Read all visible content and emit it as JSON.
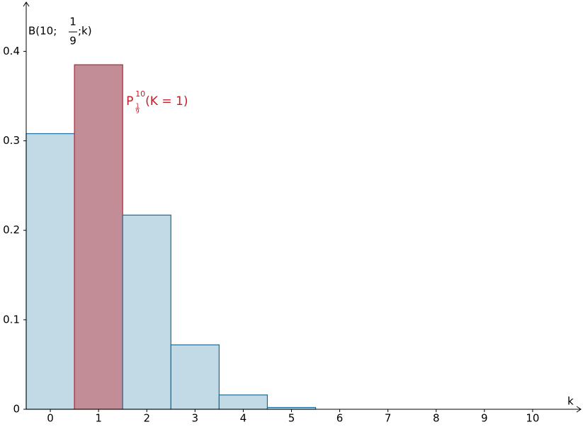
{
  "chart_data": {
    "type": "bar",
    "ylabel": {
      "prefix": "B(10;",
      "num": "1",
      "den": "9",
      "suffix": ";k)"
    },
    "xlabel": "k",
    "annotation": {
      "base": "P",
      "sup": "10",
      "sub_num": "1",
      "sub_den": "9",
      "text": "(K = 1)",
      "color": "#c0202a"
    },
    "categories": [
      "0",
      "1",
      "2",
      "3",
      "4",
      "5",
      "6",
      "7",
      "8",
      "9",
      "10"
    ],
    "values": [
      0.308,
      0.385,
      0.217,
      0.072,
      0.016,
      0.002,
      0,
      0,
      0,
      0,
      0
    ],
    "colors": [
      "#c1dae6",
      "#c28d96",
      "#c1dae6",
      "#c1dae6",
      "#c1dae6",
      "#c1dae6",
      "#c1dae6",
      "#c1dae6",
      "#c1dae6",
      "#c1dae6",
      "#c1dae6"
    ],
    "edge_colors": [
      "#1a6a9a",
      "#c0202a",
      "#1a6a9a",
      "#1a6a9a",
      "#1a6a9a",
      "#1a6a9a",
      "#1a6a9a",
      "#1a6a9a",
      "#1a6a9a",
      "#1a6a9a",
      "#1a6a9a"
    ],
    "xlim": [
      -0.5,
      11.0
    ],
    "ylim": [
      0,
      0.455
    ],
    "yticks": [
      0,
      0.1,
      0.2,
      0.3,
      0.4
    ]
  }
}
